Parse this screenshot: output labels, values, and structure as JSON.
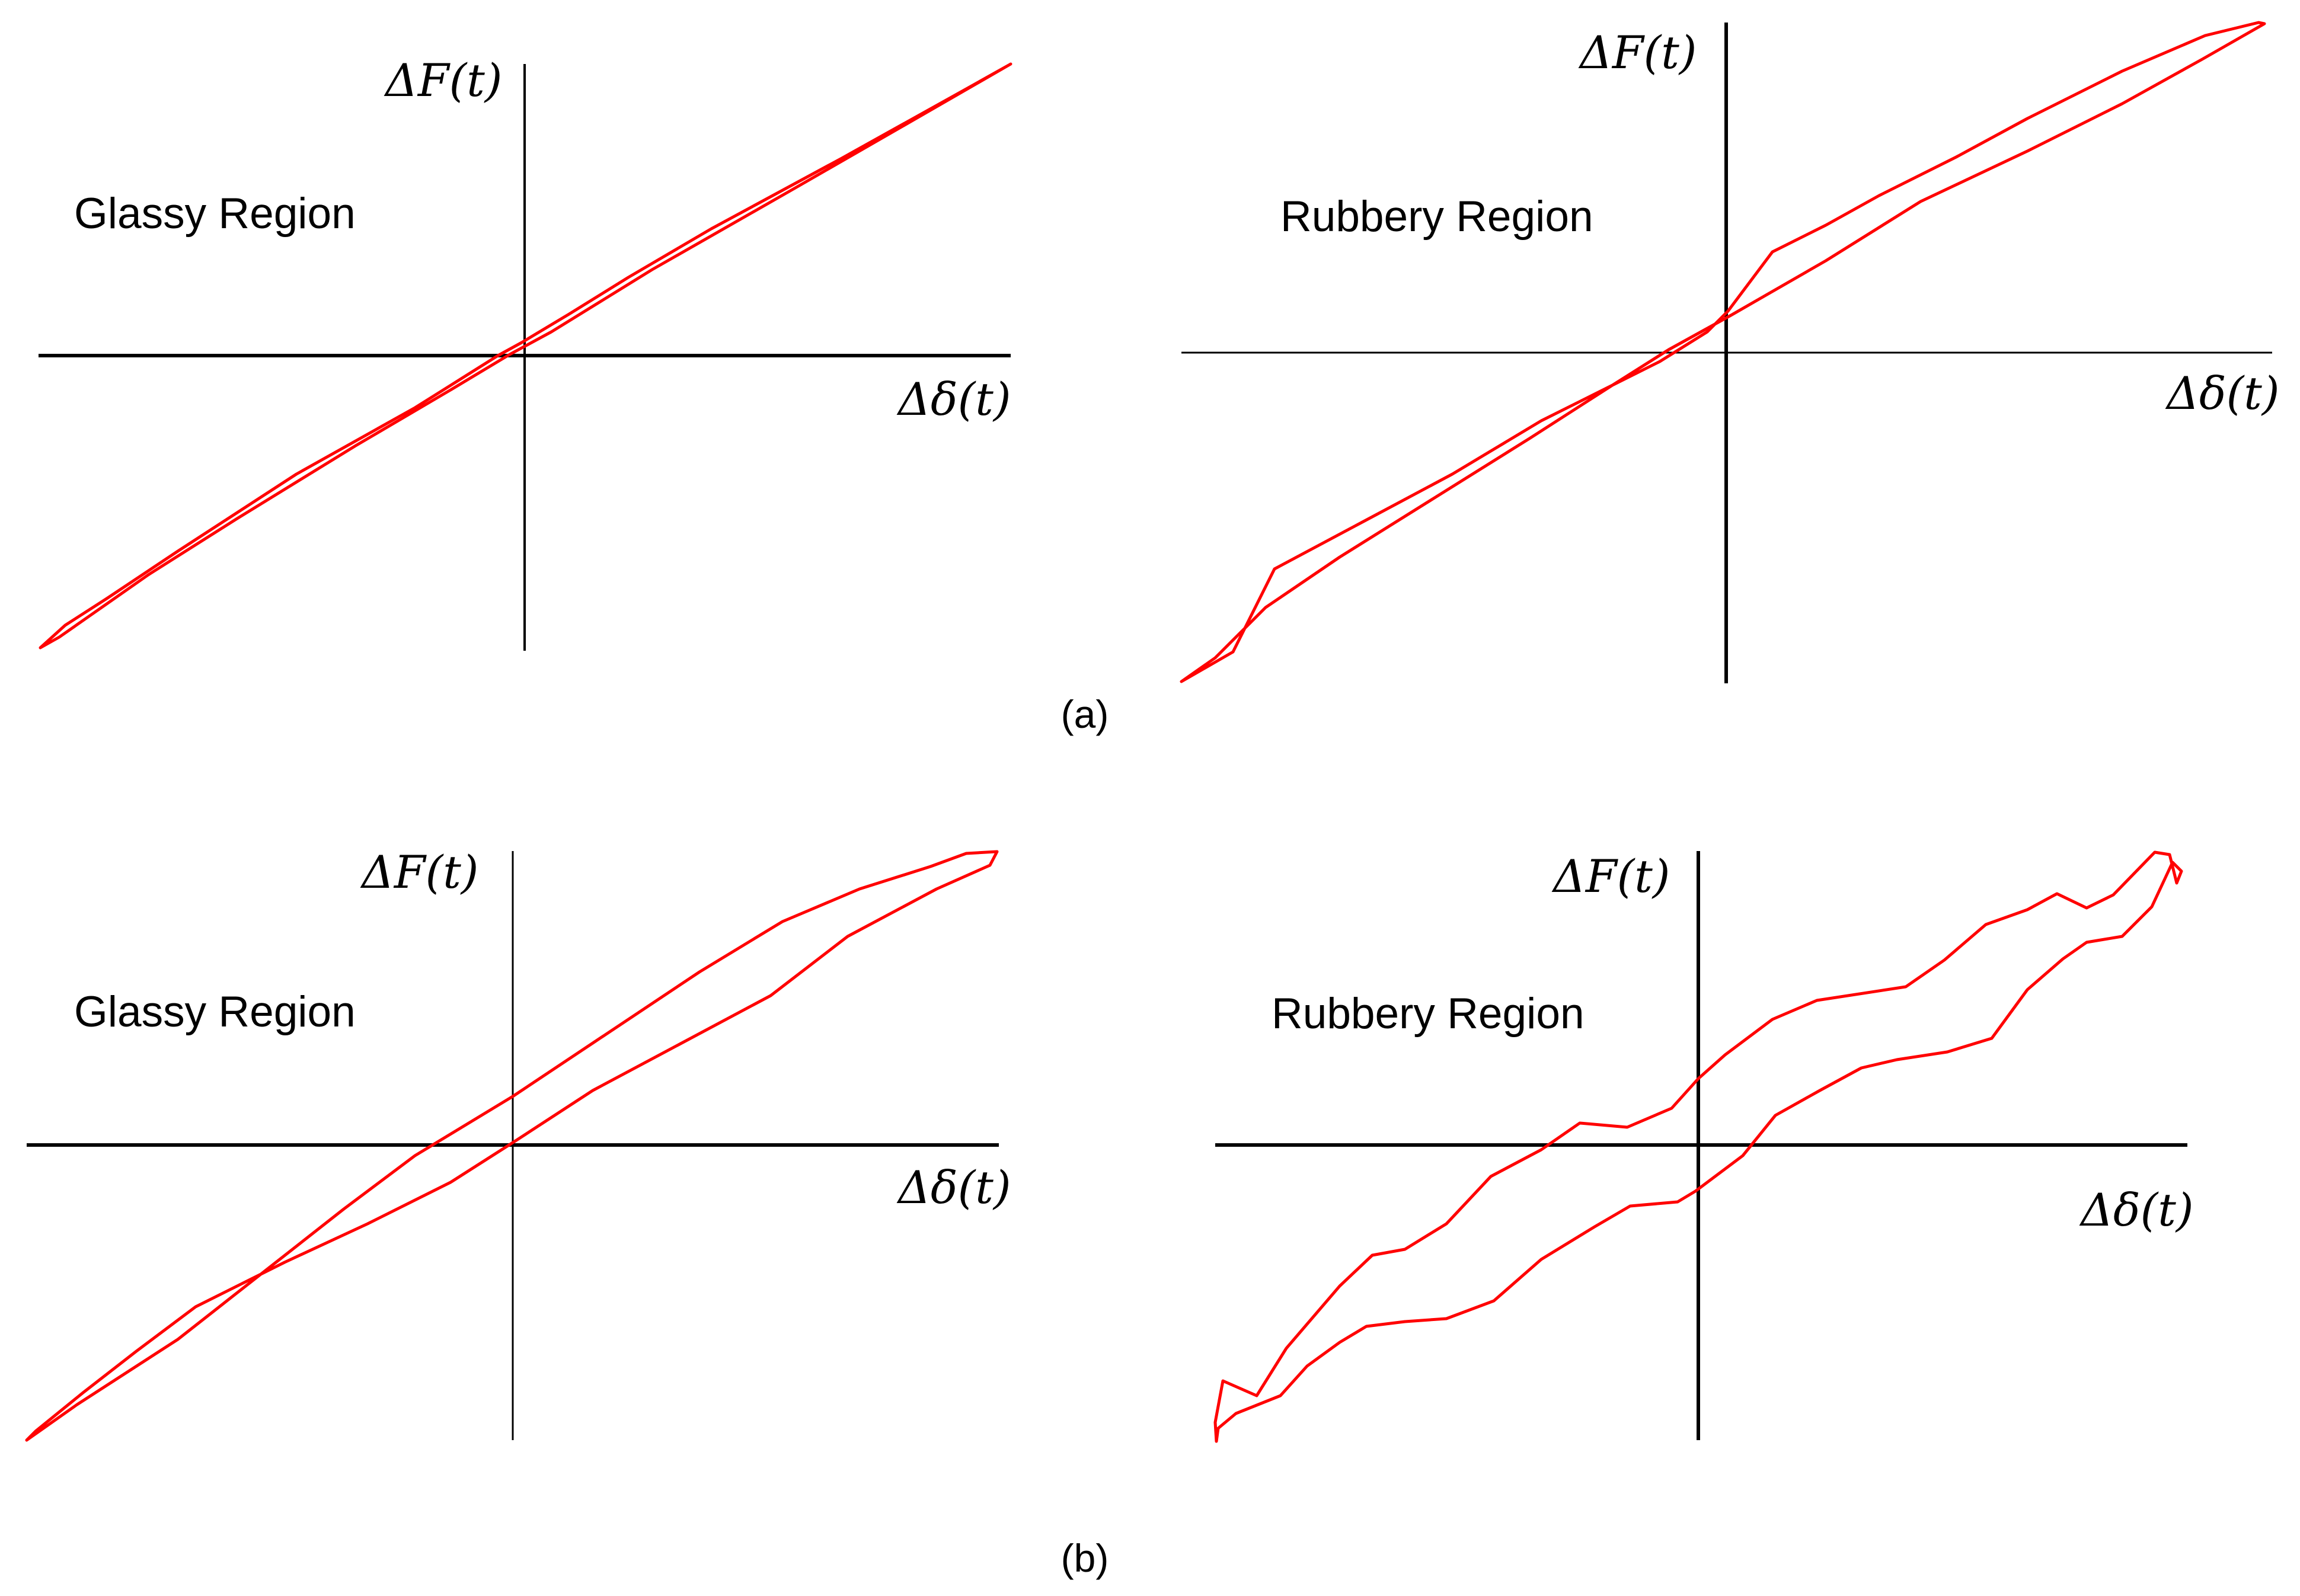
{
  "figure": {
    "captions": {
      "a": "(a)",
      "b": "(b)"
    },
    "line_color": "#ff0000",
    "axis_color": "#000000",
    "panels": [
      {
        "id": "a-left",
        "region_label": "Glassy Region",
        "y_axis_label": "ΔF(t)",
        "x_axis_label": "Δδ(t)"
      },
      {
        "id": "a-right",
        "region_label": "Rubbery Region",
        "y_axis_label": "ΔF(t)",
        "x_axis_label": "Δδ(t)"
      },
      {
        "id": "b-left",
        "region_label": "Glassy Region",
        "y_axis_label": "ΔF(t)",
        "x_axis_label": "Δδ(t)"
      },
      {
        "id": "b-right",
        "region_label": "Rubbery Region",
        "y_axis_label": "ΔF(t)",
        "x_axis_label": "Δδ(t)"
      }
    ]
  }
}
